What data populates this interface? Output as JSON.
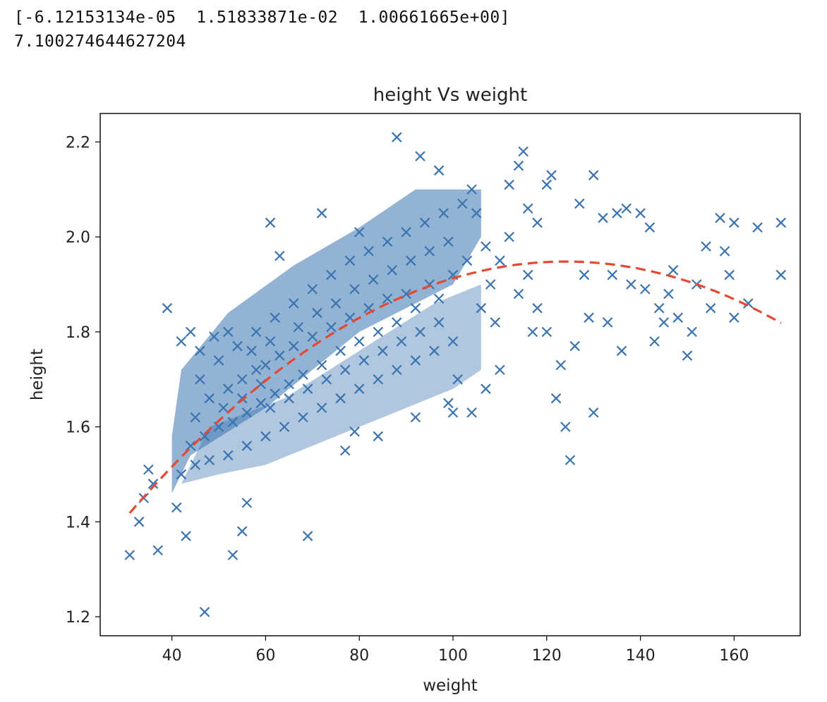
{
  "console": {
    "coef_line": "[-6.12153134e-05  1.51833871e-02  1.00661665e+00]",
    "value_line": "7.100274644627204"
  },
  "chart_data": {
    "type": "scatter",
    "title": "height Vs weight",
    "xlabel": "weight",
    "ylabel": "height",
    "xlim": [
      24.7,
      174.1
    ],
    "ylim": [
      1.16,
      2.26
    ],
    "xticks": [
      40,
      60,
      80,
      100,
      120,
      140,
      160
    ],
    "yticks": [
      1.2,
      1.4,
      1.6,
      1.8,
      2.0,
      2.2
    ],
    "grid": false,
    "colors": {
      "scatter": "#3a74b0",
      "fit": "#e24a33"
    },
    "marker": "x",
    "fit_curve": {
      "style": "dashed",
      "coefficients": [
        -6.12153134e-05,
        0.0151833871,
        1.00661665
      ],
      "x_range": [
        31,
        170
      ]
    },
    "cluster_points": [
      [
        45,
        1.62
      ],
      [
        48,
        1.66
      ],
      [
        52,
        1.68
      ],
      [
        55,
        1.7
      ],
      [
        58,
        1.72
      ],
      [
        60,
        1.73
      ],
      [
        63,
        1.75
      ],
      [
        66,
        1.77
      ],
      [
        70,
        1.79
      ],
      [
        74,
        1.81
      ],
      [
        78,
        1.83
      ],
      [
        82,
        1.85
      ],
      [
        86,
        1.87
      ],
      [
        90,
        1.88
      ],
      [
        95,
        1.9
      ],
      [
        100,
        1.92
      ],
      [
        44,
        1.56
      ],
      [
        47,
        1.58
      ],
      [
        50,
        1.6
      ],
      [
        53,
        1.61
      ],
      [
        56,
        1.63
      ],
      [
        59,
        1.65
      ],
      [
        62,
        1.67
      ],
      [
        65,
        1.69
      ],
      [
        68,
        1.71
      ],
      [
        72,
        1.73
      ],
      [
        76,
        1.76
      ],
      [
        80,
        1.78
      ],
      [
        84,
        1.8
      ],
      [
        88,
        1.82
      ],
      [
        92,
        1.85
      ],
      [
        97,
        1.87
      ],
      [
        46,
        1.7
      ],
      [
        50,
        1.74
      ],
      [
        54,
        1.77
      ],
      [
        58,
        1.8
      ],
      [
        62,
        1.83
      ],
      [
        66,
        1.86
      ],
      [
        70,
        1.89
      ],
      [
        74,
        1.92
      ],
      [
        78,
        1.95
      ],
      [
        82,
        1.97
      ],
      [
        86,
        1.99
      ],
      [
        90,
        2.01
      ],
      [
        94,
        2.03
      ],
      [
        98,
        2.05
      ],
      [
        102,
        2.07
      ],
      [
        104,
        2.1
      ],
      [
        42,
        1.5
      ],
      [
        45,
        1.52
      ],
      [
        48,
        1.53
      ],
      [
        52,
        1.54
      ],
      [
        56,
        1.56
      ],
      [
        60,
        1.58
      ],
      [
        64,
        1.6
      ],
      [
        68,
        1.62
      ],
      [
        72,
        1.64
      ],
      [
        76,
        1.66
      ],
      [
        80,
        1.68
      ],
      [
        84,
        1.7
      ],
      [
        88,
        1.72
      ],
      [
        92,
        1.74
      ],
      [
        96,
        1.76
      ],
      [
        100,
        1.78
      ],
      [
        108,
        1.9
      ],
      [
        110,
        1.95
      ],
      [
        112,
        2.0
      ],
      [
        114,
        1.88
      ],
      [
        116,
        1.92
      ],
      [
        118,
        1.85
      ],
      [
        120,
        1.8
      ],
      [
        105,
        2.05
      ],
      [
        107,
        1.98
      ],
      [
        103,
        1.95
      ],
      [
        106,
        1.85
      ],
      [
        109,
        1.82
      ],
      [
        101,
        1.7
      ],
      [
        99,
        1.65
      ],
      [
        57,
        1.76
      ],
      [
        61,
        1.78
      ],
      [
        67,
        1.81
      ],
      [
        71,
        1.84
      ],
      [
        75,
        1.86
      ],
      [
        79,
        1.89
      ],
      [
        83,
        1.91
      ],
      [
        87,
        1.93
      ],
      [
        91,
        1.95
      ],
      [
        95,
        1.97
      ],
      [
        99,
        1.99
      ],
      [
        61,
        1.64
      ],
      [
        65,
        1.66
      ],
      [
        69,
        1.68
      ],
      [
        73,
        1.7
      ],
      [
        77,
        1.72
      ],
      [
        81,
        1.74
      ],
      [
        85,
        1.76
      ],
      [
        89,
        1.78
      ],
      [
        93,
        1.8
      ],
      [
        97,
        1.82
      ],
      [
        51,
        1.64
      ],
      [
        55,
        1.66
      ],
      [
        59,
        1.69
      ]
    ],
    "outlier_points": [
      [
        31,
        1.33
      ],
      [
        33,
        1.4
      ],
      [
        34,
        1.45
      ],
      [
        35,
        1.51
      ],
      [
        36,
        1.48
      ],
      [
        37,
        1.34
      ],
      [
        39,
        1.85
      ],
      [
        41,
        1.43
      ],
      [
        42,
        1.78
      ],
      [
        43,
        1.37
      ],
      [
        44,
        1.8
      ],
      [
        46,
        1.76
      ],
      [
        47,
        1.21
      ],
      [
        49,
        1.79
      ],
      [
        52,
        1.8
      ],
      [
        53,
        1.33
      ],
      [
        55,
        1.38
      ],
      [
        56,
        1.44
      ],
      [
        61,
        2.03
      ],
      [
        63,
        1.96
      ],
      [
        69,
        1.37
      ],
      [
        72,
        2.05
      ],
      [
        77,
        1.55
      ],
      [
        79,
        1.59
      ],
      [
        80,
        2.01
      ],
      [
        84,
        1.58
      ],
      [
        88,
        2.21
      ],
      [
        92,
        1.62
      ],
      [
        93,
        2.17
      ],
      [
        97,
        2.14
      ],
      [
        100,
        1.63
      ],
      [
        104,
        1.63
      ],
      [
        107,
        1.68
      ],
      [
        110,
        1.72
      ],
      [
        112,
        2.11
      ],
      [
        114,
        2.15
      ],
      [
        115,
        2.18
      ],
      [
        116,
        2.06
      ],
      [
        117,
        1.8
      ],
      [
        118,
        2.03
      ],
      [
        120,
        2.11
      ],
      [
        121,
        2.13
      ],
      [
        122,
        1.66
      ],
      [
        123,
        1.73
      ],
      [
        124,
        1.6
      ],
      [
        125,
        1.53
      ],
      [
        126,
        1.77
      ],
      [
        127,
        2.07
      ],
      [
        128,
        1.92
      ],
      [
        129,
        1.83
      ],
      [
        130,
        2.13
      ],
      [
        130,
        1.63
      ],
      [
        132,
        2.04
      ],
      [
        133,
        1.82
      ],
      [
        134,
        1.92
      ],
      [
        135,
        2.05
      ],
      [
        136,
        1.76
      ],
      [
        137,
        2.06
      ],
      [
        138,
        1.9
      ],
      [
        140,
        2.05
      ],
      [
        141,
        1.89
      ],
      [
        142,
        2.02
      ],
      [
        143,
        1.78
      ],
      [
        144,
        1.85
      ],
      [
        145,
        1.82
      ],
      [
        146,
        1.88
      ],
      [
        147,
        1.93
      ],
      [
        148,
        1.83
      ],
      [
        150,
        1.75
      ],
      [
        151,
        1.8
      ],
      [
        152,
        1.9
      ],
      [
        154,
        1.98
      ],
      [
        155,
        1.85
      ],
      [
        157,
        2.04
      ],
      [
        158,
        1.97
      ],
      [
        159,
        1.92
      ],
      [
        160,
        2.03
      ],
      [
        160,
        1.83
      ],
      [
        163,
        1.86
      ],
      [
        165,
        2.02
      ],
      [
        170,
        2.03
      ],
      [
        170,
        1.92
      ]
    ]
  }
}
